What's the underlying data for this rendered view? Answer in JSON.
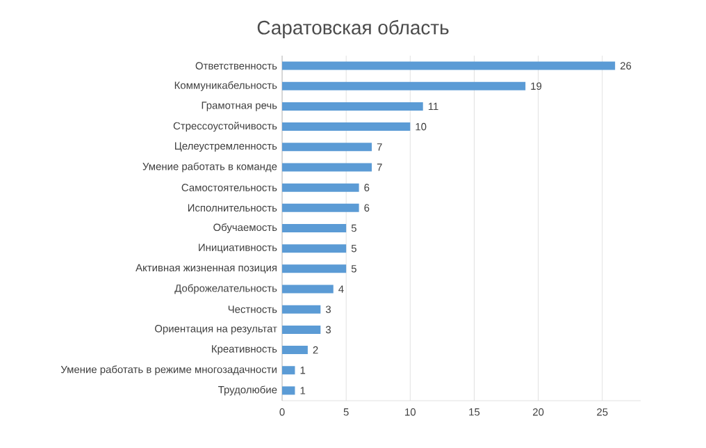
{
  "chart_data": {
    "type": "bar",
    "orientation": "horizontal",
    "title": "Саратовская область",
    "categories": [
      "Ответственность",
      "Коммуникабельность",
      "Грамотная речь",
      "Стрессоустойчивость",
      "Целеустремленность",
      "Умение работать в команде",
      "Самостоятельность",
      "Исполнительность",
      "Обучаемость",
      "Инициативность",
      "Активная жизненная позиция",
      "Доброжелательность",
      "Честность",
      "Ориентация на результат",
      "Креативность",
      "Умение работать в режиме многозадачности",
      "Трудолюбие"
    ],
    "values": [
      26,
      19,
      11,
      10,
      7,
      7,
      6,
      6,
      5,
      5,
      5,
      4,
      3,
      3,
      2,
      1,
      1
    ],
    "color": "#5b9bd5",
    "xlim": [
      0,
      28
    ],
    "xticks": [
      0,
      5,
      10,
      15,
      20,
      25
    ],
    "grid": "x",
    "data_labels": true
  }
}
